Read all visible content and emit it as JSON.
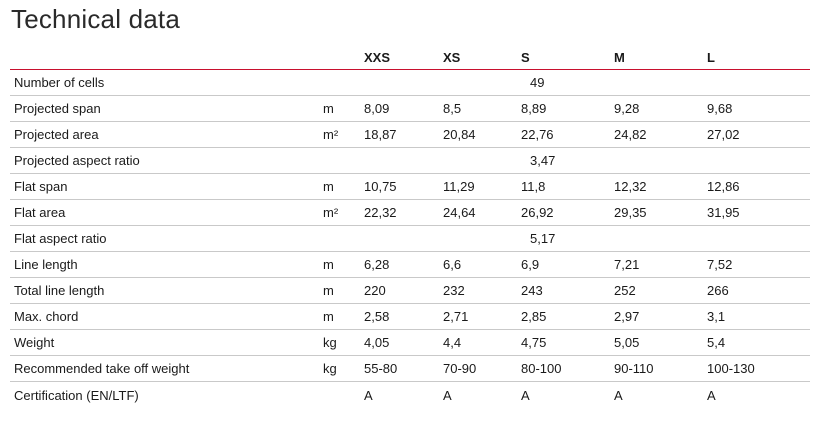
{
  "title": "Technical data",
  "sizes": [
    "XXS",
    "XS",
    "S",
    "M",
    "L"
  ],
  "rows": [
    {
      "label": "Number of cells",
      "unit": "",
      "span": "49"
    },
    {
      "label": "Projected span",
      "unit": "m",
      "values": [
        "8,09",
        "8,5",
        "8,89",
        "9,28",
        "9,68"
      ]
    },
    {
      "label": "Projected area",
      "unit": "m²",
      "values": [
        "18,87",
        "20,84",
        "22,76",
        "24,82",
        "27,02"
      ]
    },
    {
      "label": "Projected aspect ratio",
      "unit": "",
      "span": "3,47"
    },
    {
      "label": "Flat span",
      "unit": "m",
      "values": [
        "10,75",
        "11,29",
        "11,8",
        "12,32",
        "12,86"
      ]
    },
    {
      "label": "Flat area",
      "unit": "m²",
      "values": [
        "22,32",
        "24,64",
        "26,92",
        "29,35",
        "31,95"
      ]
    },
    {
      "label": "Flat aspect ratio",
      "unit": "",
      "span": "5,17"
    },
    {
      "label": "Line length",
      "unit": "m",
      "values": [
        "6,28",
        "6,6",
        "6,9",
        "7,21",
        "7,52"
      ]
    },
    {
      "label": "Total line length",
      "unit": "m",
      "values": [
        "220",
        "232",
        "243",
        "252",
        "266"
      ]
    },
    {
      "label": "Max. chord",
      "unit": "m",
      "values": [
        "2,58",
        "2,71",
        "2,85",
        "2,97",
        "3,1"
      ]
    },
    {
      "label": "Weight",
      "unit": "kg",
      "values": [
        "4,05",
        "4,4",
        "4,75",
        "5,05",
        "5,4"
      ]
    },
    {
      "label": "Recommended take off weight",
      "unit": "kg",
      "values": [
        "55-80",
        "70-90",
        "80-100",
        "90-110",
        "100-130"
      ]
    },
    {
      "label": "Certification (EN/LTF)",
      "unit": "",
      "values": [
        "A",
        "A",
        "A",
        "A",
        "A"
      ]
    }
  ],
  "colors": {
    "header_rule": "#c8102e",
    "row_rule": "#c9c9c9",
    "text": "#1a1a1a"
  }
}
